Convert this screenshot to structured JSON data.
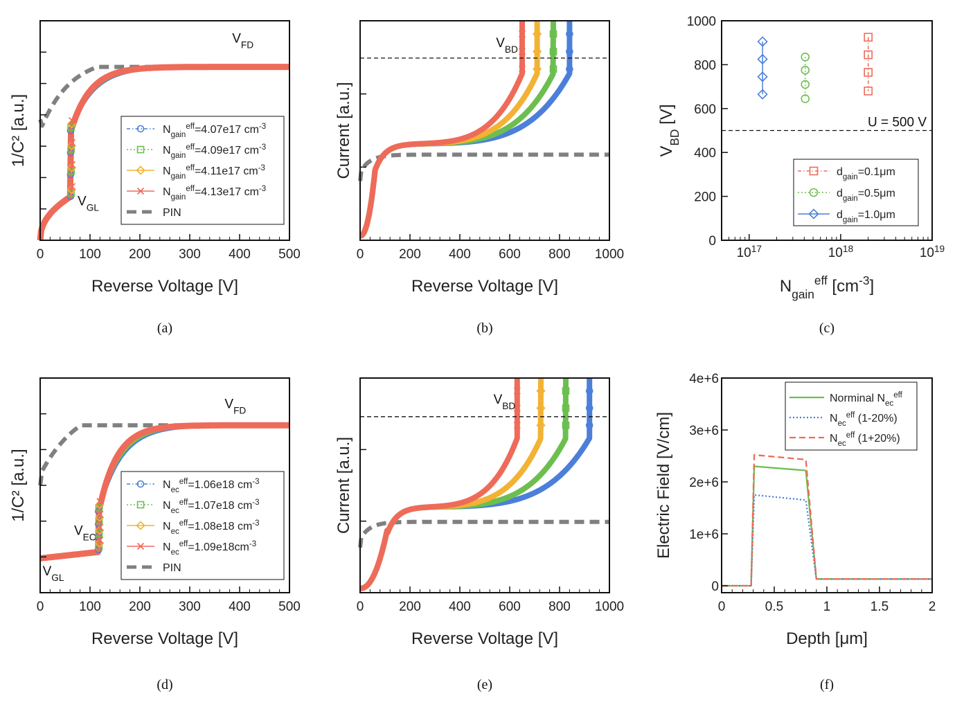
{
  "chart_data": [
    {
      "id": "a",
      "type": "line",
      "caption": "(a)",
      "xlabel": "Reverse Voltage [V]",
      "ylabel": "1/C² [a.u.]",
      "xlim": [
        0,
        500
      ],
      "xticks": [
        "0",
        "100",
        "200",
        "300",
        "400",
        "500"
      ],
      "y_tick_labels": false,
      "annotations": [
        {
          "text": "V",
          "sub": "FD",
          "x": 385,
          "y": 0.9
        },
        {
          "text": "V",
          "sub": "GL",
          "x": 75,
          "y": 0.16
        }
      ],
      "series": [
        {
          "name_main": "N",
          "name_sub": "gain",
          "name_sup": "eff",
          "name_tail": "=4.07e17 cm",
          "name_tail_sup": "-3",
          "color": "#4c7fd9",
          "marker": "circle",
          "style": "dashdot"
        },
        {
          "name_main": "N",
          "name_sub": "gain",
          "name_sup": "eff",
          "name_tail": "=4.09e17 cm",
          "name_tail_sup": "-3",
          "color": "#6cbf4f",
          "marker": "square",
          "style": "dot"
        },
        {
          "name_main": "N",
          "name_sub": "gain",
          "name_sup": "eff",
          "name_tail": "=4.11e17 cm",
          "name_tail_sup": "-3",
          "color": "#f2b233",
          "marker": "diamond",
          "style": "solid"
        },
        {
          "name_main": "N",
          "name_sub": "gain",
          "name_sup": "eff",
          "name_tail": "=4.13e17 cm",
          "name_tail_sup": "-3",
          "color": "#ee6b5a",
          "marker": "x",
          "style": "solid"
        },
        {
          "name_main": "PIN",
          "color": "#808080",
          "style": "bigdash"
        }
      ]
    },
    {
      "id": "b",
      "type": "line",
      "caption": "(b)",
      "xlabel": "Reverse Voltage [V]",
      "ylabel": "Current [a.u.]",
      "xlim": [
        0,
        1000
      ],
      "xticks": [
        "0",
        "200",
        "400",
        "600",
        "800",
        "1000"
      ],
      "y_tick_labels": false,
      "annotations": [
        {
          "text": "V",
          "sub": "BD",
          "x": 545,
          "y": 0.88
        }
      ],
      "breakdown_voltages": [
        840,
        775,
        710,
        650
      ],
      "threshold_line_y": 0.83,
      "series_colors": [
        "#4c7fd9",
        "#6cbf4f",
        "#f2b233",
        "#ee6b5a",
        "#808080"
      ]
    },
    {
      "id": "c",
      "type": "scatter",
      "caption": "(c)",
      "xlabel_main": "N",
      "xlabel_sub": "gain",
      "xlabel_sup": "eff",
      "xlabel_tail": " [cm",
      "xlabel_tail_sup": "-3",
      "xlabel_end": "]",
      "ylabel_main": "V",
      "ylabel_sub": "BD",
      "ylabel_tail": " [V]",
      "xscale": "log",
      "xlim": [
        5e+16,
        1e+19
      ],
      "ylim": [
        0,
        1000
      ],
      "yticks": [
        "0",
        "200",
        "400",
        "600",
        "800",
        "1000"
      ],
      "xticks": [
        {
          "base": "10",
          "exp": "17"
        },
        {
          "base": "10",
          "exp": "18"
        },
        {
          "base": "10",
          "exp": "19"
        }
      ],
      "threshold": {
        "y": 500,
        "label": "U = 500 V"
      },
      "series": [
        {
          "name_main": "d",
          "name_sub": "gain",
          "name_tail": "=0.1μm",
          "color": "#ee6b5a",
          "marker": "square",
          "style": "dashdot",
          "x": 2e+18,
          "values": [
            925,
            845,
            765,
            680
          ]
        },
        {
          "name_main": "d",
          "name_sub": "gain",
          "name_tail": "=0.5μm",
          "color": "#6cbf4f",
          "marker": "circle",
          "style": "dot",
          "x": 4.1e+17,
          "values": [
            835,
            775,
            710,
            645
          ]
        },
        {
          "name_main": "d",
          "name_sub": "gain",
          "name_tail": "=1.0μm",
          "color": "#4c7fd9",
          "marker": "diamond",
          "style": "solid",
          "x": 1.4e+17,
          "values": [
            905,
            825,
            745,
            665
          ]
        }
      ]
    },
    {
      "id": "d",
      "type": "line",
      "caption": "(d)",
      "xlabel": "Reverse Voltage [V]",
      "ylabel": "1/C² [a.u.]",
      "xlim": [
        0,
        500
      ],
      "xticks": [
        "0",
        "100",
        "200",
        "300",
        "400",
        "500"
      ],
      "y_tick_labels": false,
      "annotations": [
        {
          "text": "V",
          "sub": "FD",
          "x": 370,
          "y": 0.86
        },
        {
          "text": "V",
          "sub": "EC",
          "x": 68,
          "y": 0.27
        },
        {
          "text": "V",
          "sub": "GL",
          "x": 5,
          "y": 0.08
        }
      ],
      "series": [
        {
          "name_main": "N",
          "name_sub": "ec",
          "name_sup": "eff",
          "name_tail": "=1.06e18 cm",
          "name_tail_sup": "-3",
          "color": "#4c7fd9",
          "marker": "circle",
          "style": "dashdot"
        },
        {
          "name_main": "N",
          "name_sub": "ec",
          "name_sup": "eff",
          "name_tail": "=1.07e18 cm",
          "name_tail_sup": "-3",
          "color": "#6cbf4f",
          "marker": "square",
          "style": "dot"
        },
        {
          "name_main": "N",
          "name_sub": "ec",
          "name_sup": "eff",
          "name_tail": "=1.08e18 cm",
          "name_tail_sup": "-3",
          "color": "#f2b233",
          "marker": "diamond",
          "style": "solid"
        },
        {
          "name_main": "N",
          "name_sub": "ec",
          "name_sup": "eff",
          "name_tail": "=1.09e18cm",
          "name_tail_sup": "-3",
          "color": "#ee6b5a",
          "marker": "x",
          "style": "solid"
        },
        {
          "name_main": "PIN",
          "color": "#808080",
          "style": "bigdash"
        }
      ]
    },
    {
      "id": "e",
      "type": "line",
      "caption": "(e)",
      "xlabel": "Reverse Voltage [V]",
      "ylabel": "Current [a.u.]",
      "xlim": [
        0,
        1000
      ],
      "xticks": [
        "0",
        "200",
        "400",
        "600",
        "800",
        "1000"
      ],
      "y_tick_labels": false,
      "annotations": [
        {
          "text": "V",
          "sub": "BD",
          "x": 535,
          "y": 0.88
        }
      ],
      "breakdown_voltages": [
        920,
        825,
        725,
        630
      ],
      "threshold_line_y": 0.82,
      "series_colors": [
        "#4c7fd9",
        "#6cbf4f",
        "#f2b233",
        "#ee6b5a",
        "#808080"
      ]
    },
    {
      "id": "f",
      "type": "line",
      "caption": "(f)",
      "xlabel": "Depth [μm]",
      "ylabel": "Electric Field [V/cm]",
      "xlim": [
        0,
        2
      ],
      "ylim": [
        0,
        4000000
      ],
      "xticks": [
        "0",
        "0.5",
        "1",
        "1.5",
        "2"
      ],
      "yticks": [
        "0",
        "1e+6",
        "2e+6",
        "3e+6",
        "4e+6"
      ],
      "series": [
        {
          "name_main": "Norminal N",
          "name_sub": "ec",
          "name_sup": "eff",
          "color": "#6cbf4f",
          "style": "solid",
          "x": [
            0,
            0.28,
            0.31,
            0.8,
            0.9,
            2.0
          ],
          "values": [
            0,
            0,
            2300000,
            2220000,
            130000,
            130000
          ]
        },
        {
          "name_main": "N",
          "name_sub": "ec",
          "name_sup": "eff",
          "name_tail": " (1-20%)",
          "color": "#4c7fd9",
          "style": "dot",
          "x": [
            0,
            0.28,
            0.31,
            0.8,
            0.9,
            2.0
          ],
          "values": [
            0,
            0,
            1750000,
            1650000,
            130000,
            130000
          ]
        },
        {
          "name_main": "N",
          "name_sub": "ec",
          "name_sup": "eff",
          "name_tail": " (1+20%)",
          "color": "#ee6b5a",
          "style": "dash",
          "x": [
            0,
            0.28,
            0.31,
            0.8,
            0.9,
            2.0
          ],
          "values": [
            0,
            0,
            2520000,
            2430000,
            130000,
            130000
          ]
        }
      ]
    }
  ]
}
